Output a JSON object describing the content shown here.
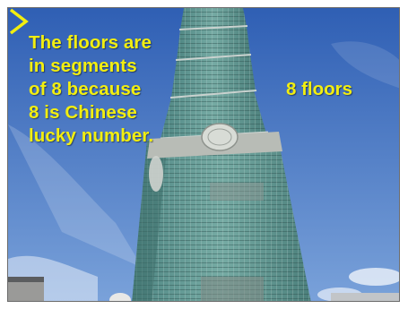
{
  "photo": {
    "caption": "The floors are\nin segments\nof 8 because\n8 is Chinese\nlucky number.",
    "segment_label": "8 floors",
    "subject_icon": "tower-icon"
  },
  "colors": {
    "annotation_text": "#f2ee10",
    "sky_top": "#2f5fb4",
    "sky_bottom": "#6f98d6",
    "glass": "#5f9d97",
    "glass_shadow": "#3e6f6c",
    "frame_border": "#6b6b6b"
  }
}
